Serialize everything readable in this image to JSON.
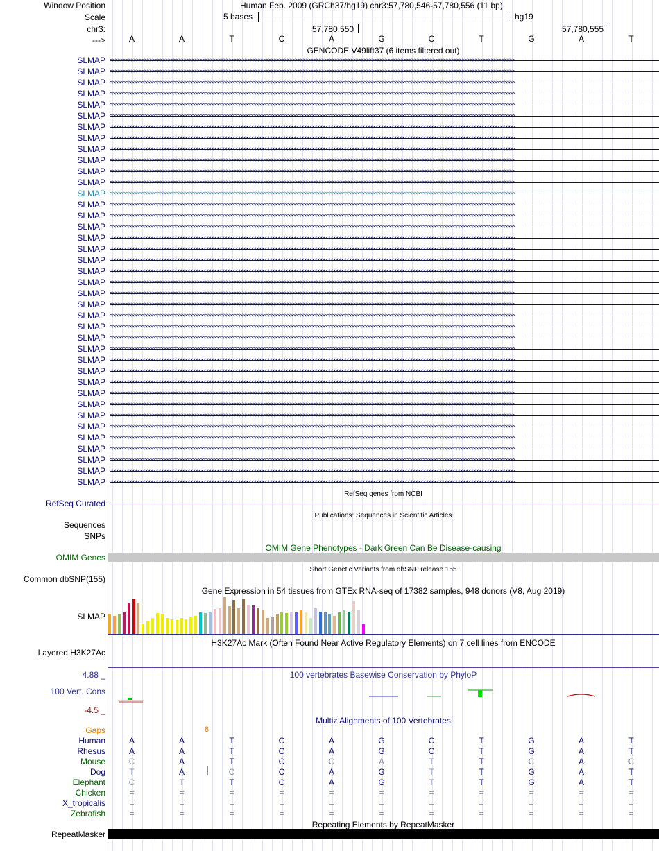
{
  "header": {
    "window_position_label": "Window Position",
    "scale_label": "Scale",
    "chrom_label": "chr3:",
    "strand_label": "--->",
    "assembly_title": "Human Feb. 2009 (GRCh37/hg19)   chr3:57,780,546-57,780,556 (11 bp)",
    "scale_text": "5 bases",
    "scale_db": "hg19",
    "pos1": "57,780,550",
    "pos2": "57,780,555",
    "bases": [
      "A",
      "A",
      "T",
      "C",
      "A",
      "G",
      "C",
      "T",
      "G",
      "A",
      "T"
    ]
  },
  "gencode": {
    "title": "GENCODE V49lift37 (6 items filtered out)",
    "gene_label": "SLMAP",
    "arrow_text": ">>>>>>>>>>>>>>>>>>>>>>>>>>>>>>>>>>>>>>>>>>>>>>>>>>>>>>>>>>>>>>>>>>>>>>>>>>>>>>>>>>>>>>>>>>>>>>>>>>>>>>>>>>>>>>>>>>>>>>>>>>>>>>>>>>>>>>>>>>>>>>>>>>>>>>>>>",
    "row_count": 39,
    "highlight_row": 12
  },
  "refseq": {
    "title": "RefSeq genes from NCBI",
    "label": "RefSeq Curated"
  },
  "publications": {
    "title": "Publications: Sequences in Scientific Articles",
    "label1": "Sequences",
    "label2": "SNPs"
  },
  "omim": {
    "title": "OMIM Gene Phenotypes - Dark Green Can Be Disease-causing",
    "label": "OMIM Genes",
    "title_color": "#006400",
    "label_color": "#006400"
  },
  "dbsnp": {
    "title": "Short Genetic Variants from dbSNP release 155",
    "label": "Common dbSNP(155)"
  },
  "gtex": {
    "title": "Gene Expression in 54 tissues from GTEx RNA-seq of 17382 samples, 948 donors (V8, Aug 2019)",
    "label": "SLMAP",
    "bars": [
      {
        "v": 0.55,
        "c": "#f5a623"
      },
      {
        "v": 0.5,
        "c": "#f0a050"
      },
      {
        "v": 0.55,
        "c": "#8fbc5a"
      },
      {
        "v": 0.62,
        "c": "#b02060"
      },
      {
        "v": 0.85,
        "c": "#c01050"
      },
      {
        "v": 0.95,
        "c": "#e00000"
      },
      {
        "v": 0.85,
        "c": "#d2a97a"
      },
      {
        "v": 0.3,
        "c": "#eeee00"
      },
      {
        "v": 0.35,
        "c": "#eeee00"
      },
      {
        "v": 0.45,
        "c": "#eeee00"
      },
      {
        "v": 0.58,
        "c": "#eeee00"
      },
      {
        "v": 0.55,
        "c": "#eeee00"
      },
      {
        "v": 0.45,
        "c": "#eeee00"
      },
      {
        "v": 0.4,
        "c": "#eeee00"
      },
      {
        "v": 0.38,
        "c": "#eeee00"
      },
      {
        "v": 0.45,
        "c": "#eeee00"
      },
      {
        "v": 0.4,
        "c": "#eeee00"
      },
      {
        "v": 0.48,
        "c": "#eeee00"
      },
      {
        "v": 0.5,
        "c": "#eeee00"
      },
      {
        "v": 0.6,
        "c": "#00c4c4"
      },
      {
        "v": 0.58,
        "c": "#8fbc8f"
      },
      {
        "v": 0.6,
        "c": "#a0c0e0"
      },
      {
        "v": 0.68,
        "c": "#f0c0c0"
      },
      {
        "v": 0.7,
        "c": "#e8c8c8"
      },
      {
        "v": 1.0,
        "c": "#d2a97a"
      },
      {
        "v": 0.75,
        "c": "#d2a97a"
      },
      {
        "v": 0.92,
        "c": "#8b6f47"
      },
      {
        "v": 0.7,
        "c": "#d2a97a"
      },
      {
        "v": 0.95,
        "c": "#8b6f47"
      },
      {
        "v": 0.8,
        "c": "#e8c8d8"
      },
      {
        "v": 0.78,
        "c": "#8b2f8f"
      },
      {
        "v": 0.7,
        "c": "#8b6f47"
      },
      {
        "v": 0.65,
        "c": "#d2a97a"
      },
      {
        "v": 0.45,
        "c": "#d2a97a"
      },
      {
        "v": 0.48,
        "c": "#b0a0a0"
      },
      {
        "v": 0.55,
        "c": "#c0a060"
      },
      {
        "v": 0.6,
        "c": "#9acd32"
      },
      {
        "v": 0.58,
        "c": "#9acd32"
      },
      {
        "v": 0.62,
        "c": "#d8c8e8"
      },
      {
        "v": 0.6,
        "c": "#6060ff"
      },
      {
        "v": 0.65,
        "c": "#f5a623"
      },
      {
        "v": 0.6,
        "c": "#eee8a0"
      },
      {
        "v": 0.45,
        "c": "#c8e8c0"
      },
      {
        "v": 0.7,
        "c": "#c0c0e0"
      },
      {
        "v": 0.62,
        "c": "#3070d0"
      },
      {
        "v": 0.6,
        "c": "#6090c0"
      },
      {
        "v": 0.55,
        "c": "#60a0c0"
      },
      {
        "v": 0.5,
        "c": "#e0b890"
      },
      {
        "v": 0.6,
        "c": "#6db84a"
      },
      {
        "v": 0.65,
        "c": "#a0c8a0"
      },
      {
        "v": 0.62,
        "c": "#008060"
      },
      {
        "v": 0.88,
        "c": "#e8d0c8"
      },
      {
        "v": 0.65,
        "c": "#d8d0d8"
      },
      {
        "v": 0.3,
        "c": "#ff00ff"
      }
    ]
  },
  "h3k27ac": {
    "title": "H3K27Ac Mark (Often Found Near Active Regulatory Elements) on 7 cell lines from ENCODE",
    "label": "Layered H3K27Ac"
  },
  "phylop": {
    "title": "100 vertebrates Basewise Conservation by PhyloP",
    "label": "100 Vert. Cons",
    "ymax": "4.88 _",
    "ymin": "-4.5 _",
    "title_color": "#2e3191",
    "max_color": "#2e3191",
    "min_color": "#8b1a1a"
  },
  "multiz": {
    "title": "Multiz Alignments of 100 Vertebrates",
    "gaps_label": "Gaps",
    "gap_count": "8",
    "species": [
      {
        "name": "Human",
        "color": "#0c0c78",
        "bases": [
          "A",
          "A",
          "T",
          "C",
          "A",
          "G",
          "C",
          "T",
          "G",
          "A",
          "T"
        ],
        "dim": []
      },
      {
        "name": "Rhesus",
        "color": "#0c0c78",
        "bases": [
          "A",
          "A",
          "T",
          "C",
          "A",
          "G",
          "C",
          "T",
          "G",
          "A",
          "T"
        ],
        "dim": []
      },
      {
        "name": "Mouse",
        "color": "#006400",
        "bases": [
          "C",
          "A",
          "T",
          "C",
          "C",
          "A",
          "T",
          "T",
          "C",
          "A",
          "C"
        ],
        "dim": [
          0,
          4,
          5,
          6,
          8,
          10
        ]
      },
      {
        "name": "Dog",
        "color": "#0c0c78",
        "bases": [
          "T",
          "A",
          "C",
          "C",
          "A",
          "G",
          "T",
          "T",
          "G",
          "A",
          "T"
        ],
        "dim": [
          0,
          2,
          6
        ]
      },
      {
        "name": "Elephant",
        "color": "#006400",
        "bases": [
          "C",
          "T",
          "T",
          "C",
          "A",
          "G",
          "T",
          "T",
          "G",
          "A",
          "T"
        ],
        "dim": [
          0,
          1,
          6
        ]
      },
      {
        "name": "Chicken",
        "color": "#006400",
        "bases": [
          "=",
          "=",
          "=",
          "=",
          "=",
          "=",
          "=",
          "=",
          "=",
          "=",
          "="
        ],
        "dim": [
          0,
          1,
          2,
          3,
          4,
          5,
          6,
          7,
          8,
          9,
          10
        ]
      },
      {
        "name": "X_tropicalis",
        "color": "#0c0c78",
        "bases": [
          "=",
          "=",
          "=",
          "=",
          "=",
          "=",
          "=",
          "=",
          "=",
          "=",
          "="
        ],
        "dim": [
          0,
          1,
          2,
          3,
          4,
          5,
          6,
          7,
          8,
          9,
          10
        ]
      },
      {
        "name": "Zebrafish",
        "color": "#006400",
        "bases": [
          "=",
          "=",
          "=",
          "=",
          "=",
          "=",
          "=",
          "=",
          "=",
          "=",
          "="
        ],
        "dim": [
          0,
          1,
          2,
          3,
          4,
          5,
          6,
          7,
          8,
          9,
          10
        ]
      }
    ]
  },
  "repeatmasker": {
    "title": "Repeating Elements by RepeatMasker",
    "label": "RepeatMasker"
  },
  "colors": {
    "track_blue": "#0c0c78",
    "gap_orange": "#e08000",
    "omim_gray": "#c8c8c8"
  }
}
